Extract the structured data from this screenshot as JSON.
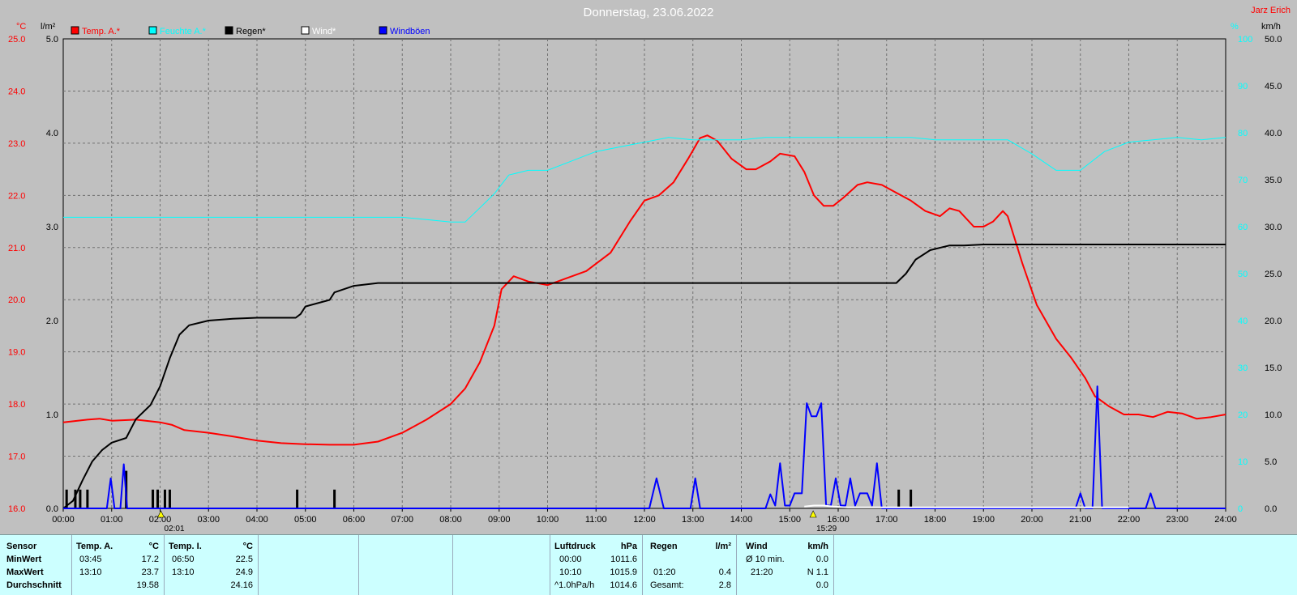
{
  "header": {
    "title": "Donnerstag, 23.06.2022",
    "author": "Jarz Erich"
  },
  "legend": [
    {
      "label": "Temp. A.*",
      "color": "#ff0000"
    },
    {
      "label": "Feuchte A.*",
      "color": "#00ffff"
    },
    {
      "label": "Regen*",
      "color": "#000000"
    },
    {
      "label": "Wind*",
      "color": "#ffffff"
    },
    {
      "label": "Windböen",
      "color": "#0000ff"
    }
  ],
  "markers": [
    {
      "time": "02:01"
    },
    {
      "time": "15:29"
    }
  ],
  "chart_data": {
    "type": "line",
    "x_ticks": [
      "00:00",
      "01:00",
      "02:00",
      "03:00",
      "04:00",
      "05:00",
      "06:00",
      "07:00",
      "08:00",
      "09:00",
      "10:00",
      "11:00",
      "12:00",
      "13:00",
      "14:00",
      "15:00",
      "16:00",
      "17:00",
      "18:00",
      "19:00",
      "20:00",
      "21:00",
      "22:00",
      "23:00",
      "24:00"
    ],
    "xlim": [
      0,
      24
    ],
    "grid": true,
    "legend_position": "top-left",
    "axes": {
      "temp": {
        "unit": "°C",
        "ylim": [
          16,
          25
        ],
        "ticks": [
          "16.0",
          "17.0",
          "18.0",
          "19.0",
          "20.0",
          "21.0",
          "22.0",
          "23.0",
          "24.0",
          "25.0"
        ],
        "color": "#ff0000"
      },
      "rain": {
        "unit": "l/m²",
        "ylim": [
          0,
          5
        ],
        "ticks": [
          "0.0",
          "1.0",
          "2.0",
          "3.0",
          "4.0",
          "5.0"
        ],
        "color": "#000000"
      },
      "humidity": {
        "unit": "%",
        "ylim": [
          0,
          100
        ],
        "ticks": [
          "0",
          "10",
          "20",
          "30",
          "40",
          "50",
          "60",
          "70",
          "80",
          "90",
          "100"
        ],
        "color": "#00ffff"
      },
      "wind": {
        "unit": "km/h",
        "ylim": [
          0,
          50
        ],
        "ticks": [
          "0.0",
          "5.0",
          "10.0",
          "15.0",
          "20.0",
          "25.0",
          "30.0",
          "35.0",
          "40.0",
          "45.0",
          "50.0"
        ],
        "color": "#000000"
      }
    },
    "series": [
      {
        "name": "Temp. A.*",
        "axis": "temp",
        "color": "#ff0000",
        "width": 2,
        "points": [
          [
            0,
            17.65
          ],
          [
            0.5,
            17.7
          ],
          [
            0.75,
            17.72
          ],
          [
            1,
            17.68
          ],
          [
            1.5,
            17.7
          ],
          [
            2,
            17.65
          ],
          [
            2.25,
            17.6
          ],
          [
            2.5,
            17.5
          ],
          [
            3,
            17.45
          ],
          [
            3.5,
            17.38
          ],
          [
            4,
            17.3
          ],
          [
            4.5,
            17.25
          ],
          [
            5,
            17.23
          ],
          [
            5.5,
            17.22
          ],
          [
            6,
            17.22
          ],
          [
            6.5,
            17.28
          ],
          [
            7,
            17.45
          ],
          [
            7.5,
            17.7
          ],
          [
            8,
            18.0
          ],
          [
            8.3,
            18.3
          ],
          [
            8.6,
            18.8
          ],
          [
            8.9,
            19.5
          ],
          [
            9.05,
            20.2
          ],
          [
            9.3,
            20.45
          ],
          [
            9.6,
            20.35
          ],
          [
            10,
            20.28
          ],
          [
            10.3,
            20.38
          ],
          [
            10.8,
            20.55
          ],
          [
            11.3,
            20.9
          ],
          [
            11.7,
            21.5
          ],
          [
            12,
            21.9
          ],
          [
            12.3,
            22.0
          ],
          [
            12.6,
            22.25
          ],
          [
            12.9,
            22.7
          ],
          [
            13.15,
            23.1
          ],
          [
            13.3,
            23.15
          ],
          [
            13.5,
            23.05
          ],
          [
            13.8,
            22.7
          ],
          [
            14.1,
            22.5
          ],
          [
            14.3,
            22.5
          ],
          [
            14.6,
            22.65
          ],
          [
            14.8,
            22.8
          ],
          [
            15.1,
            22.75
          ],
          [
            15.3,
            22.45
          ],
          [
            15.5,
            22.0
          ],
          [
            15.7,
            21.8
          ],
          [
            15.9,
            21.8
          ],
          [
            16.1,
            21.95
          ],
          [
            16.4,
            22.2
          ],
          [
            16.6,
            22.25
          ],
          [
            16.9,
            22.2
          ],
          [
            17.2,
            22.05
          ],
          [
            17.5,
            21.9
          ],
          [
            17.8,
            21.7
          ],
          [
            18.1,
            21.6
          ],
          [
            18.3,
            21.75
          ],
          [
            18.5,
            21.7
          ],
          [
            18.8,
            21.4
          ],
          [
            19.0,
            21.4
          ],
          [
            19.2,
            21.5
          ],
          [
            19.4,
            21.7
          ],
          [
            19.5,
            21.6
          ],
          [
            19.8,
            20.7
          ],
          [
            20.1,
            19.9
          ],
          [
            20.5,
            19.25
          ],
          [
            20.8,
            18.9
          ],
          [
            21.1,
            18.5
          ],
          [
            21.3,
            18.15
          ],
          [
            21.6,
            17.95
          ],
          [
            21.9,
            17.8
          ],
          [
            22.2,
            17.8
          ],
          [
            22.5,
            17.75
          ],
          [
            22.8,
            17.85
          ],
          [
            23.1,
            17.82
          ],
          [
            23.4,
            17.72
          ],
          [
            23.7,
            17.75
          ],
          [
            24,
            17.8
          ]
        ]
      },
      {
        "name": "Feuchte A.*",
        "axis": "humidity",
        "color": "#00ffff",
        "width": 1,
        "points": [
          [
            0,
            62
          ],
          [
            2,
            62
          ],
          [
            4,
            62
          ],
          [
            6,
            62
          ],
          [
            7,
            62
          ],
          [
            7.5,
            61.5
          ],
          [
            8,
            61
          ],
          [
            8.3,
            61
          ],
          [
            8.6,
            64
          ],
          [
            8.9,
            67
          ],
          [
            9.2,
            71
          ],
          [
            9.6,
            72
          ],
          [
            10,
            72
          ],
          [
            10.5,
            74
          ],
          [
            11,
            76
          ],
          [
            11.5,
            77
          ],
          [
            12,
            78
          ],
          [
            12.5,
            79
          ],
          [
            13,
            78.5
          ],
          [
            13.5,
            78.5
          ],
          [
            14,
            78.5
          ],
          [
            14.5,
            79
          ],
          [
            15,
            79
          ],
          [
            15.5,
            79
          ],
          [
            16,
            79
          ],
          [
            16.5,
            79
          ],
          [
            17,
            79
          ],
          [
            17.5,
            79
          ],
          [
            18,
            78.5
          ],
          [
            18.5,
            78.5
          ],
          [
            19,
            78.5
          ],
          [
            19.5,
            78.5
          ],
          [
            20,
            75.5
          ],
          [
            20.5,
            72
          ],
          [
            21,
            72
          ],
          [
            21.5,
            76
          ],
          [
            22,
            78
          ],
          [
            22.5,
            78.5
          ],
          [
            23,
            79
          ],
          [
            23.5,
            78.5
          ],
          [
            24,
            79
          ]
        ]
      },
      {
        "name": "Regen*",
        "axis": "rain",
        "color": "#000000",
        "width": 2,
        "points": [
          [
            0,
            0
          ],
          [
            0.2,
            0.08
          ],
          [
            0.4,
            0.3
          ],
          [
            0.6,
            0.5
          ],
          [
            0.8,
            0.62
          ],
          [
            1,
            0.7
          ],
          [
            1.3,
            0.75
          ],
          [
            1.5,
            0.95
          ],
          [
            1.8,
            1.1
          ],
          [
            2,
            1.3
          ],
          [
            2.2,
            1.6
          ],
          [
            2.4,
            1.85
          ],
          [
            2.6,
            1.95
          ],
          [
            3,
            2.0
          ],
          [
            3.5,
            2.02
          ],
          [
            4,
            2.03
          ],
          [
            4.8,
            2.03
          ],
          [
            4.9,
            2.07
          ],
          [
            5.0,
            2.15
          ],
          [
            5.5,
            2.22
          ],
          [
            5.6,
            2.3
          ],
          [
            6,
            2.37
          ],
          [
            6.5,
            2.4
          ],
          [
            7,
            2.4
          ],
          [
            8,
            2.4
          ],
          [
            10,
            2.4
          ],
          [
            12,
            2.4
          ],
          [
            14,
            2.4
          ],
          [
            16,
            2.4
          ],
          [
            17.2,
            2.4
          ],
          [
            17.4,
            2.5
          ],
          [
            17.6,
            2.65
          ],
          [
            17.9,
            2.75
          ],
          [
            18.3,
            2.8
          ],
          [
            18.6,
            2.8
          ],
          [
            19,
            2.81
          ],
          [
            19.5,
            2.81
          ],
          [
            20,
            2.81
          ],
          [
            21,
            2.81
          ],
          [
            22,
            2.81
          ],
          [
            23,
            2.81
          ],
          [
            24,
            2.81
          ]
        ]
      },
      {
        "name": "Windböen",
        "axis": "wind",
        "color": "#0000ff",
        "width": 2,
        "points": [
          [
            0,
            0
          ],
          [
            0.9,
            0
          ],
          [
            0.98,
            3.2
          ],
          [
            1.06,
            0
          ],
          [
            1.18,
            0
          ],
          [
            1.25,
            4.7
          ],
          [
            1.32,
            0
          ],
          [
            12.1,
            0
          ],
          [
            12.25,
            3.2
          ],
          [
            12.4,
            0
          ],
          [
            12.95,
            0
          ],
          [
            13.05,
            3.2
          ],
          [
            13.15,
            0
          ],
          [
            14.5,
            0
          ],
          [
            14.6,
            1.5
          ],
          [
            14.7,
            0.3
          ],
          [
            14.8,
            4.8
          ],
          [
            14.9,
            0.3
          ],
          [
            15.0,
            0.3
          ],
          [
            15.1,
            1.6
          ],
          [
            15.25,
            1.6
          ],
          [
            15.35,
            11.2
          ],
          [
            15.45,
            9.8
          ],
          [
            15.55,
            9.8
          ],
          [
            15.65,
            11.2
          ],
          [
            15.75,
            0.3
          ],
          [
            15.85,
            0.3
          ],
          [
            15.95,
            3.2
          ],
          [
            16.05,
            0.3
          ],
          [
            16.15,
            0.3
          ],
          [
            16.25,
            3.2
          ],
          [
            16.35,
            0.3
          ],
          [
            16.45,
            1.6
          ],
          [
            16.6,
            1.6
          ],
          [
            16.7,
            0.3
          ],
          [
            16.8,
            4.8
          ],
          [
            16.9,
            0
          ],
          [
            20.9,
            0
          ],
          [
            21.0,
            1.6
          ],
          [
            21.1,
            0
          ],
          [
            21.25,
            0
          ],
          [
            21.35,
            13.0
          ],
          [
            21.45,
            0
          ],
          [
            22.35,
            0
          ],
          [
            22.45,
            1.6
          ],
          [
            22.55,
            0
          ],
          [
            24,
            0
          ]
        ]
      },
      {
        "name": "Wind*",
        "axis": "wind",
        "color": "#ffffff",
        "width": 2,
        "points": [
          [
            15.3,
            0.2
          ],
          [
            15.5,
            0.3
          ],
          [
            15.7,
            0.3
          ],
          [
            15.9,
            0.2
          ],
          [
            16.2,
            0.1
          ],
          [
            21.3,
            0.1
          ],
          [
            21.6,
            0.1
          ],
          [
            22.0,
            0.1
          ]
        ]
      }
    ],
    "rain_bars": [
      {
        "x": 0.07,
        "v": 0.2
      },
      {
        "x": 0.25,
        "v": 0.2
      },
      {
        "x": 0.35,
        "v": 0.2
      },
      {
        "x": 0.5,
        "v": 0.2
      },
      {
        "x": 1.3,
        "v": 0.4
      },
      {
        "x": 1.85,
        "v": 0.2
      },
      {
        "x": 1.95,
        "v": 0.2
      },
      {
        "x": 2.1,
        "v": 0.2
      },
      {
        "x": 2.2,
        "v": 0.2
      },
      {
        "x": 4.83,
        "v": 0.2
      },
      {
        "x": 5.6,
        "v": 0.2
      },
      {
        "x": 17.25,
        "v": 0.2
      },
      {
        "x": 17.5,
        "v": 0.2
      }
    ]
  },
  "stats": {
    "sensor": {
      "header": "Sensor",
      "rows": [
        "MinWert",
        "MaxWert",
        "Durchschnitt"
      ]
    },
    "temp_a": {
      "name": "Temp. A.",
      "unit": "°C",
      "min_time": "03:45",
      "min": "17.2",
      "max_time": "13:10",
      "max": "23.7",
      "avg": "19.58"
    },
    "temp_i": {
      "name": "Temp. I.",
      "unit": "°C",
      "min_time": "06:50",
      "min": "22.5",
      "max_time": "13:10",
      "max": "24.9",
      "avg": "24.16"
    },
    "pressure": {
      "name": "Luftdruck",
      "unit": "hPa",
      "min_time": "00:00",
      "min": "1011.6",
      "max_time": "10:10",
      "max": "1015.9",
      "trend_label": "^1.0hPa/h",
      "trend_value": "1014.6"
    },
    "rain": {
      "name": "Regen",
      "unit": "l/m²",
      "max_time": "01:20",
      "max": "0.4",
      "total_label": "Gesamt:",
      "total": "2.8"
    },
    "wind": {
      "name": "Wind",
      "unit": "km/h",
      "avg_label": "Ø 10 min.",
      "avg": "0.0",
      "max_time": "21:20",
      "max": "N 1.1",
      "last": "0.0"
    }
  }
}
